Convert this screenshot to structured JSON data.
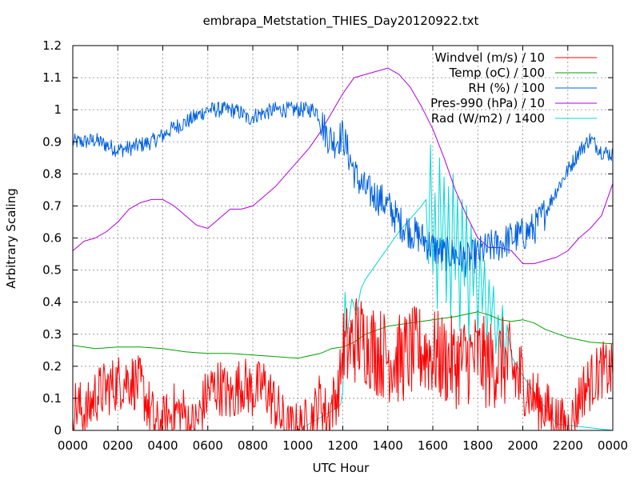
{
  "chart_data": {
    "type": "line",
    "title": "embrapa_Metstation_THIES_Day20120922.txt",
    "xlabel": "UTC Hour",
    "ylabel": "Arbitrary Scaling",
    "xlim": [
      0,
      2400
    ],
    "ylim": [
      0,
      1.2
    ],
    "grid": true,
    "legend_position": "top-right",
    "x_ticks": [
      "0000",
      "0200",
      "0400",
      "0600",
      "0800",
      "1000",
      "1200",
      "1400",
      "1600",
      "1800",
      "2000",
      "2200",
      "0000"
    ],
    "y_ticks": [
      "0",
      "0.1",
      "0.2",
      "0.3",
      "0.4",
      "0.5",
      "0.6",
      "0.7",
      "0.8",
      "0.9",
      "1",
      "1.1",
      "1.2"
    ],
    "series": [
      {
        "name": "Windvel (m/s) / 10",
        "color": "#ff0000",
        "noisy": true,
        "x": [
          0,
          30,
          60,
          100,
          150,
          200,
          250,
          300,
          330,
          360,
          380,
          400,
          450,
          500,
          520,
          550,
          600,
          650,
          700,
          750,
          800,
          850,
          900,
          950,
          1000,
          1050,
          1080,
          1100,
          1130,
          1150,
          1180,
          1200,
          1230,
          1260,
          1300,
          1350,
          1400,
          1450,
          1500,
          1550,
          1600,
          1650,
          1700,
          1750,
          1800,
          1850,
          1900,
          1950,
          2000,
          2050,
          2100,
          2150,
          2180,
          2200,
          2230,
          2260,
          2300,
          2350,
          2400
        ],
        "y": [
          0.08,
          0.07,
          0.05,
          0.11,
          0.13,
          0.15,
          0.16,
          0.14,
          0.09,
          0.03,
          0.0,
          0.02,
          0.06,
          0.05,
          0.0,
          0.02,
          0.12,
          0.14,
          0.1,
          0.15,
          0.12,
          0.14,
          0.08,
          0.0,
          0.0,
          0.02,
          0.06,
          0.1,
          0.04,
          0.08,
          0.12,
          0.24,
          0.26,
          0.29,
          0.28,
          0.25,
          0.23,
          0.22,
          0.24,
          0.25,
          0.24,
          0.22,
          0.21,
          0.22,
          0.23,
          0.2,
          0.22,
          0.19,
          0.14,
          0.1,
          0.07,
          0.03,
          0.01,
          0.0,
          0.05,
          0.12,
          0.15,
          0.19,
          0.18
        ]
      },
      {
        "name": "Temp (oC) / 100",
        "color": "#00a000",
        "noisy": false,
        "x": [
          0,
          100,
          200,
          300,
          400,
          500,
          600,
          700,
          800,
          900,
          1000,
          1100,
          1150,
          1200,
          1250,
          1300,
          1400,
          1500,
          1600,
          1700,
          1800,
          1850,
          1900,
          1950,
          2000,
          2050,
          2100,
          2200,
          2300,
          2400
        ],
        "y": [
          0.265,
          0.255,
          0.26,
          0.26,
          0.255,
          0.245,
          0.24,
          0.24,
          0.235,
          0.23,
          0.225,
          0.24,
          0.255,
          0.26,
          0.275,
          0.3,
          0.325,
          0.335,
          0.345,
          0.355,
          0.37,
          0.36,
          0.345,
          0.34,
          0.345,
          0.335,
          0.315,
          0.29,
          0.275,
          0.27
        ]
      },
      {
        "name": "RH (%) / 100",
        "color": "#0060e0",
        "noisy": true,
        "x": [
          0,
          50,
          100,
          150,
          200,
          250,
          300,
          350,
          400,
          450,
          500,
          550,
          600,
          650,
          700,
          750,
          780,
          800,
          850,
          900,
          950,
          1000,
          1050,
          1080,
          1100,
          1130,
          1160,
          1200,
          1230,
          1260,
          1300,
          1350,
          1400,
          1450,
          1500,
          1550,
          1600,
          1650,
          1700,
          1750,
          1800,
          1850,
          1900,
          1950,
          2000,
          2050,
          2100,
          2150,
          2200,
          2250,
          2300,
          2350,
          2400
        ],
        "y": [
          0.9,
          0.9,
          0.905,
          0.89,
          0.875,
          0.88,
          0.89,
          0.9,
          0.92,
          0.945,
          0.96,
          0.98,
          1.0,
          1.0,
          1.0,
          0.99,
          0.97,
          0.98,
          0.99,
          1.0,
          1.0,
          1.0,
          1.0,
          1.0,
          0.97,
          0.92,
          0.9,
          0.92,
          0.85,
          0.79,
          0.75,
          0.73,
          0.7,
          0.65,
          0.62,
          0.6,
          0.57,
          0.55,
          0.55,
          0.53,
          0.55,
          0.57,
          0.58,
          0.6,
          0.61,
          0.63,
          0.68,
          0.75,
          0.81,
          0.87,
          0.91,
          0.87,
          0.86
        ]
      },
      {
        "name": "Pres-990 (hPa) / 10",
        "color": "#b000e0",
        "noisy": false,
        "x": [
          0,
          50,
          100,
          150,
          200,
          250,
          300,
          350,
          400,
          450,
          500,
          550,
          600,
          650,
          700,
          750,
          800,
          850,
          900,
          950,
          1000,
          1050,
          1100,
          1150,
          1200,
          1250,
          1300,
          1350,
          1400,
          1450,
          1500,
          1550,
          1600,
          1650,
          1700,
          1750,
          1800,
          1850,
          1900,
          1950,
          2000,
          2050,
          2100,
          2150,
          2200,
          2250,
          2300,
          2350,
          2400
        ],
        "y": [
          0.56,
          0.59,
          0.6,
          0.62,
          0.65,
          0.69,
          0.71,
          0.72,
          0.72,
          0.7,
          0.67,
          0.64,
          0.63,
          0.66,
          0.69,
          0.69,
          0.7,
          0.73,
          0.76,
          0.8,
          0.84,
          0.88,
          0.93,
          0.99,
          1.05,
          1.1,
          1.11,
          1.12,
          1.13,
          1.11,
          1.07,
          1.01,
          0.94,
          0.85,
          0.75,
          0.67,
          0.6,
          0.57,
          0.57,
          0.56,
          0.52,
          0.52,
          0.53,
          0.54,
          0.56,
          0.6,
          0.63,
          0.67,
          0.77
        ]
      },
      {
        "name": "Rad (W/m2) / 1400",
        "color": "#00d8d8",
        "noisy": false,
        "x": [
          0,
          900,
          1000,
          1050,
          1100,
          1150,
          1190,
          1200,
          1210,
          1220,
          1240,
          1260,
          1280,
          1300,
          1350,
          1400,
          1450,
          1500,
          1550,
          1570,
          1580,
          1590,
          1600,
          1610,
          1620,
          1630,
          1640,
          1650,
          1660,
          1670,
          1680,
          1690,
          1700,
          1710,
          1720,
          1730,
          1740,
          1750,
          1760,
          1770,
          1780,
          1790,
          1800,
          1810,
          1820,
          1830,
          1840,
          1850,
          1860,
          1870,
          1880,
          1890,
          1900,
          1910,
          1920,
          1930,
          1950,
          2000,
          2050,
          2100,
          2150,
          2400
        ],
        "y": [
          0,
          0,
          0.0,
          0.02,
          0.04,
          0.06,
          0.08,
          0.12,
          0.43,
          0.3,
          0.41,
          0.36,
          0.44,
          0.47,
          0.52,
          0.57,
          0.62,
          0.66,
          0.7,
          0.72,
          0.52,
          0.89,
          0.49,
          0.74,
          0.38,
          0.85,
          0.5,
          0.79,
          0.4,
          0.76,
          0.35,
          0.8,
          0.47,
          0.73,
          0.31,
          0.72,
          0.45,
          0.7,
          0.28,
          0.64,
          0.42,
          0.6,
          0.28,
          0.58,
          0.37,
          0.53,
          0.26,
          0.47,
          0.33,
          0.45,
          0.24,
          0.36,
          0.26,
          0.39,
          0.2,
          0.33,
          0.23,
          0.17,
          0.12,
          0.07,
          0.02,
          0
        ]
      }
    ]
  }
}
